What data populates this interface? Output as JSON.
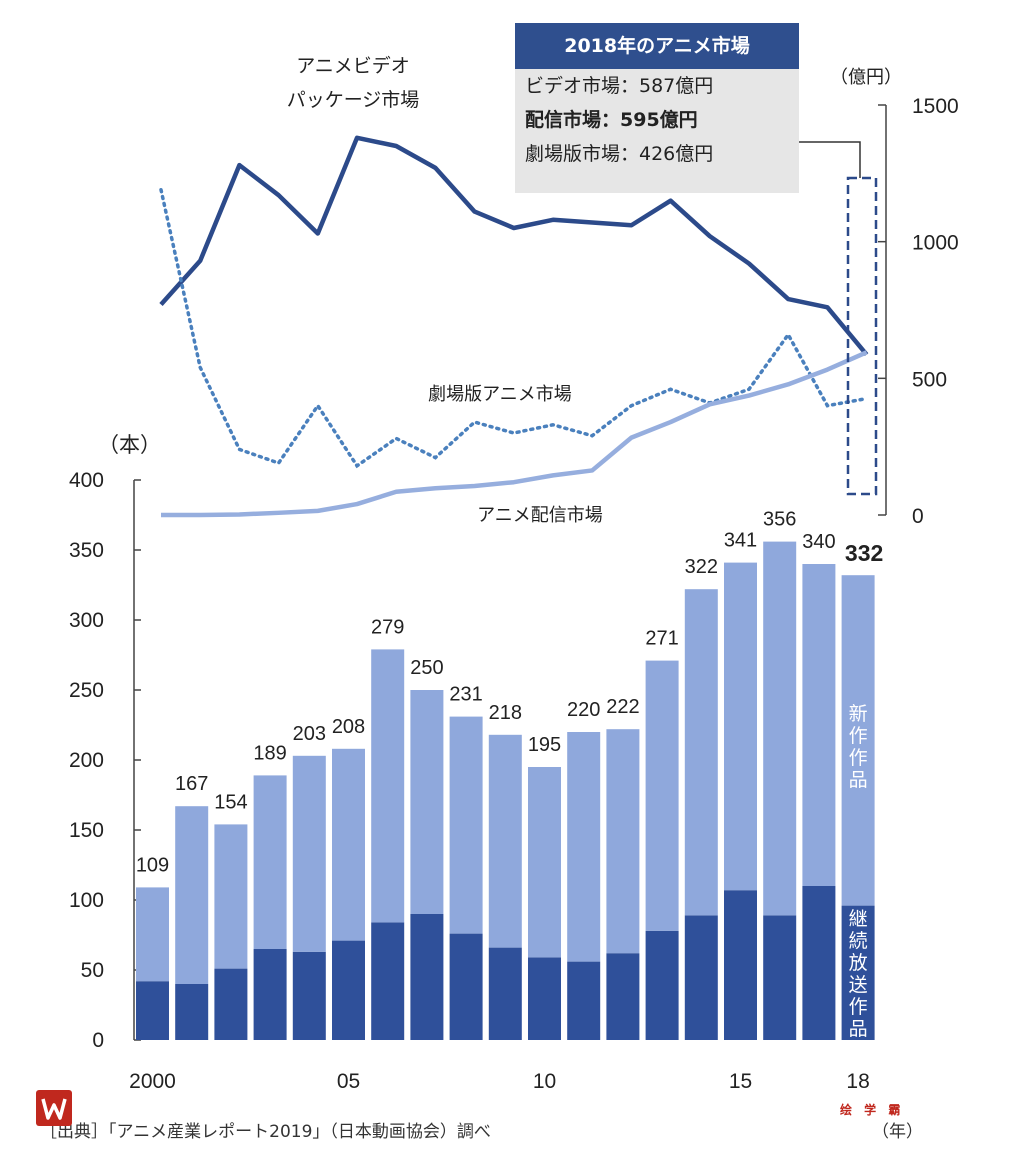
{
  "chart_data": [
    {
      "type": "bar",
      "stacked": true,
      "unit": "（本）",
      "x_label_unit": "（年）",
      "categories": [
        "2000",
        "01",
        "02",
        "03",
        "04",
        "05",
        "06",
        "07",
        "08",
        "09",
        "10",
        "11",
        "12",
        "13",
        "14",
        "15",
        "16",
        "17",
        "18"
      ],
      "tick_labels": [
        "2000",
        "05",
        "10",
        "15",
        "18"
      ],
      "tick_label_category_index": [
        0,
        5,
        10,
        15,
        18
      ],
      "totals": [
        109,
        167,
        154,
        189,
        203,
        208,
        279,
        250,
        231,
        218,
        195,
        220,
        222,
        271,
        322,
        341,
        356,
        340,
        332
      ],
      "series": [
        {
          "name": "継続放送作品",
          "values": [
            42,
            40,
            51,
            65,
            63,
            71,
            84,
            90,
            76,
            66,
            59,
            56,
            62,
            78,
            89,
            107,
            89,
            110,
            96
          ]
        },
        {
          "name": "新作作品",
          "values": [
            67,
            127,
            103,
            124,
            140,
            137,
            195,
            160,
            155,
            152,
            136,
            164,
            160,
            193,
            233,
            234,
            267,
            230,
            236
          ]
        }
      ],
      "ylim": [
        0,
        400
      ],
      "yticks": [
        0,
        50,
        100,
        150,
        200,
        250,
        300,
        350,
        400
      ]
    },
    {
      "type": "line",
      "unit": "（億円）",
      "ylim": [
        0,
        1500
      ],
      "yticks": [
        0,
        500,
        1000,
        1500
      ],
      "x": [
        2000,
        2001,
        2002,
        2003,
        2004,
        2005,
        2006,
        2007,
        2008,
        2009,
        2010,
        2011,
        2012,
        2013,
        2014,
        2015,
        2016,
        2017,
        2018
      ],
      "series": [
        {
          "name": "アニメビデオ\nパッケージ市場",
          "label_lines": [
            "アニメビデオ",
            "パッケージ市場"
          ],
          "style": "solid",
          "values": [
            770,
            930,
            1280,
            1170,
            1030,
            1380,
            1350,
            1270,
            1110,
            1050,
            1080,
            1070,
            1060,
            1150,
            1020,
            920,
            790,
            760,
            587
          ]
        },
        {
          "name": "劇場版アニメ市場",
          "style": "dotted",
          "values": [
            1190,
            540,
            240,
            190,
            400,
            180,
            280,
            210,
            340,
            300,
            330,
            290,
            400,
            460,
            410,
            460,
            660,
            400,
            426
          ]
        },
        {
          "name": "アニメ配信市場",
          "style": "light",
          "values": [
            0,
            0,
            2,
            8,
            15,
            40,
            85,
            98,
            106,
            120,
            145,
            163,
            283,
            340,
            405,
            437,
            478,
            532,
            595
          ]
        }
      ]
    }
  ],
  "annotation": {
    "title": "2018年のアニメ市場",
    "lines": [
      {
        "text": "ビデオ市場：587億円",
        "bold": false
      },
      {
        "text": "配信市場：595億円",
        "bold": true
      },
      {
        "text": "劇場版市場：426億円",
        "bold": false
      }
    ]
  },
  "source": "［出典］「アニメ産業レポート2019」（日本動画協会）調べ",
  "watermark": "绘 学 霸",
  "colors": {
    "bar_continuing": "#2f509a",
    "bar_new": "#8fa8dc",
    "line_video": "#2c4a8a",
    "line_theater": "#4a80bd",
    "line_streaming": "#96aede",
    "frame": "#2c4a8a"
  }
}
